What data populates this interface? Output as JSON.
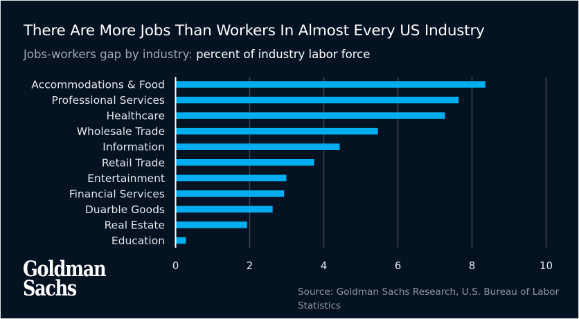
{
  "header": {
    "title": "There Are More Jobs Than Workers In Almost Every US Industry",
    "subtitle_muted": "Jobs-workers gap by industry:",
    "subtitle_strong": "percent of industry labor force"
  },
  "footer": {
    "logo_line1": "Goldman",
    "logo_line2": "Sachs",
    "source": "Source: Goldman Sachs Research, U.S. Bureau of Labor Statistics"
  },
  "colors": {
    "background": "#051222",
    "bar": "#00aeef",
    "gridline": "#3a4553",
    "axis": "#ffffff"
  },
  "chart_data": {
    "type": "bar",
    "orientation": "horizontal",
    "title": "There Are More Jobs Than Workers In Almost Every US Industry",
    "subtitle": "Jobs-workers gap by industry: percent of industry labor force",
    "categories": [
      "Accommodations & Food",
      "Professional Services",
      "Healthcare",
      "Wholesale Trade",
      "Information",
      "Retail Trade",
      "Entertainment",
      "Financial Services",
      "Duarble Goods",
      "Real Estate",
      "Education"
    ],
    "values": [
      8.36,
      7.64,
      7.27,
      5.46,
      4.43,
      3.74,
      2.99,
      2.93,
      2.62,
      1.93,
      0.28
    ],
    "xlabel": "",
    "ylabel": "",
    "xlim": [
      0,
      10
    ],
    "xticks": [
      0,
      2,
      4,
      6,
      8,
      10
    ],
    "xtick_labels": [
      "0",
      "2",
      "4",
      "6",
      "8",
      "10"
    ],
    "grid": "vertical",
    "legend": "none",
    "source": "Source: Goldman Sachs Research, U.S. Bureau of Labor Statistics"
  }
}
